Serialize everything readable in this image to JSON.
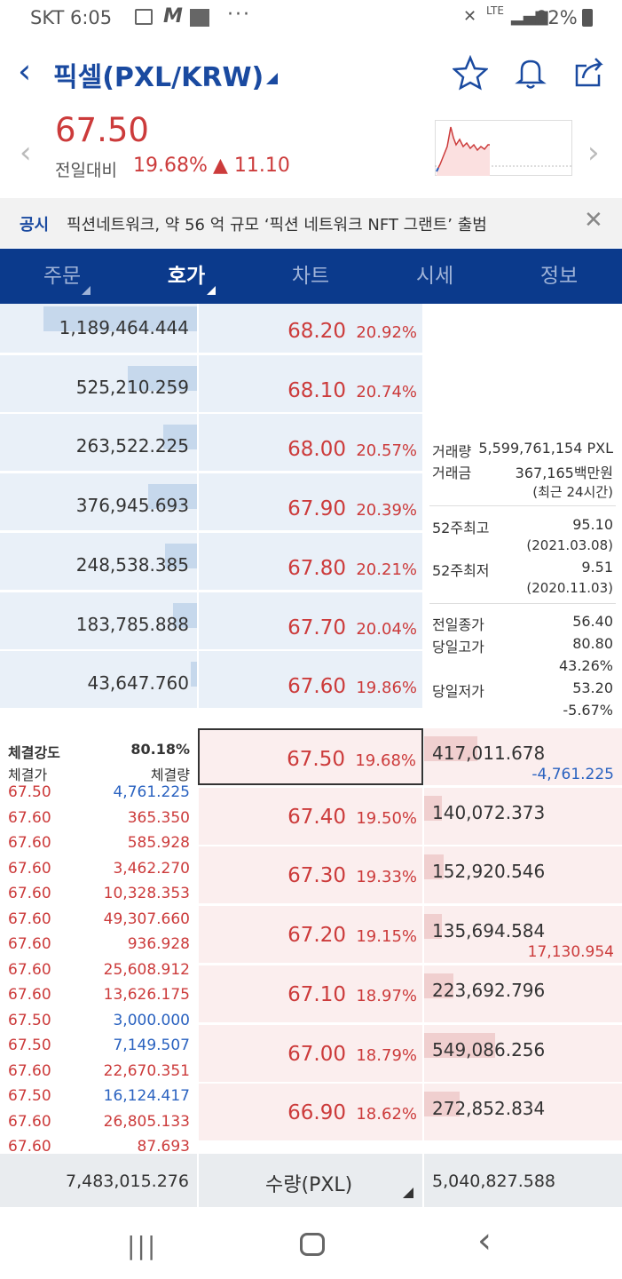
{
  "status": {
    "carrier_time": "SKT 6:05",
    "battery": "92%",
    "network": "LTE"
  },
  "header": {
    "title": "픽셀(PXL/KRW)"
  },
  "price": {
    "current": "67.50",
    "label": "전일대비",
    "change_pct": "19.68%",
    "change_abs": "▲ 11.10"
  },
  "notice": {
    "tag": "공시",
    "text": "픽션네트워크, 약 56 억 규모 ‘픽션 네트워크 NFT 그랜트’ 출범"
  },
  "tabs": [
    {
      "label": "주문",
      "active": false
    },
    {
      "label": "호가",
      "active": true
    },
    {
      "label": "차트",
      "active": false
    },
    {
      "label": "시세",
      "active": false
    },
    {
      "label": "정보",
      "active": false
    }
  ],
  "asks": [
    {
      "qty": "1,189,464.444",
      "price": "68.20",
      "pct": "20.92%",
      "bar": 0.78
    },
    {
      "qty": "525,210.259",
      "price": "68.10",
      "pct": "20.74%",
      "bar": 0.35
    },
    {
      "qty": "263,522.225",
      "price": "68.00",
      "pct": "20.57%",
      "bar": 0.17
    },
    {
      "qty": "376,945.693",
      "price": "67.90",
      "pct": "20.39%",
      "bar": 0.25
    },
    {
      "qty": "248,538.385",
      "price": "67.80",
      "pct": "20.21%",
      "bar": 0.16
    },
    {
      "qty": "183,785.888",
      "price": "67.70",
      "pct": "20.04%",
      "bar": 0.12
    },
    {
      "qty": "43,647.760",
      "price": "67.60",
      "pct": "19.86%",
      "bar": 0.03
    }
  ],
  "bids": [
    {
      "qty": "417,011.678",
      "sub": "-4,761.225",
      "price": "67.50",
      "pct": "19.68%",
      "bar": 0.27,
      "current": true
    },
    {
      "qty": "140,072.373",
      "sub": "",
      "price": "67.40",
      "pct": "19.50%",
      "bar": 0.09
    },
    {
      "qty": "152,920.546",
      "sub": "",
      "price": "67.30",
      "pct": "19.33%",
      "bar": 0.1
    },
    {
      "qty": "135,694.584",
      "sub": "17,130.954",
      "price": "67.20",
      "pct": "19.15%",
      "bar": 0.09
    },
    {
      "qty": "223,692.796",
      "sub": "",
      "price": "67.10",
      "pct": "18.97%",
      "bar": 0.15
    },
    {
      "qty": "549,086.256",
      "sub": "",
      "price": "67.00",
      "pct": "18.79%",
      "bar": 0.36
    },
    {
      "qty": "272,852.834",
      "sub": "",
      "price": "66.90",
      "pct": "18.62%",
      "bar": 0.18
    }
  ],
  "info": {
    "volume_label": "거래량",
    "volume": "5,599,761,154 PXL",
    "amount_label": "거래금",
    "amount": "367,165백만원",
    "period": "(최근 24시간)",
    "high52_label": "52주최고",
    "high52": "95.10",
    "high52_date": "(2021.03.08)",
    "low52_label": "52주최저",
    "low52": "9.51",
    "low52_date": "(2020.11.03)",
    "prev_close_label": "전일종가",
    "prev_close": "56.40",
    "day_high_label": "당일고가",
    "day_high": "80.80",
    "day_high_pct": "43.26%",
    "day_low_label": "당일저가",
    "day_low": "53.20",
    "day_low_pct": "-5.67%"
  },
  "trades": {
    "strength_label": "체결강도",
    "strength": "80.18%",
    "price_header": "체결가",
    "qty_header": "체결량",
    "rows": [
      {
        "price": "67.50",
        "qty": "4,761.225",
        "side": "sell"
      },
      {
        "price": "67.60",
        "qty": "365.350",
        "side": "buy"
      },
      {
        "price": "67.60",
        "qty": "585.928",
        "side": "buy"
      },
      {
        "price": "67.60",
        "qty": "3,462.270",
        "side": "buy"
      },
      {
        "price": "67.60",
        "qty": "10,328.353",
        "side": "buy"
      },
      {
        "price": "67.60",
        "qty": "49,307.660",
        "side": "buy"
      },
      {
        "price": "67.60",
        "qty": "936.928",
        "side": "buy"
      },
      {
        "price": "67.60",
        "qty": "25,608.912",
        "side": "buy"
      },
      {
        "price": "67.60",
        "qty": "13,626.175",
        "side": "buy"
      },
      {
        "price": "67.50",
        "qty": "3,000.000",
        "side": "sell"
      },
      {
        "price": "67.50",
        "qty": "7,149.507",
        "side": "sell"
      },
      {
        "price": "67.60",
        "qty": "22,670.351",
        "side": "buy"
      },
      {
        "price": "67.50",
        "qty": "16,124.417",
        "side": "sell"
      },
      {
        "price": "67.60",
        "qty": "26,805.133",
        "side": "buy"
      },
      {
        "price": "67.60",
        "qty": "87.693",
        "side": "buy"
      }
    ]
  },
  "footer": {
    "ask_total": "7,483,015.276",
    "unit_label": "수량(PXL)",
    "bid_total": "5,040,827.588"
  },
  "colors": {
    "up": "#cc3b3b",
    "down": "#2a62c0",
    "nav": "#0b3a8c"
  }
}
